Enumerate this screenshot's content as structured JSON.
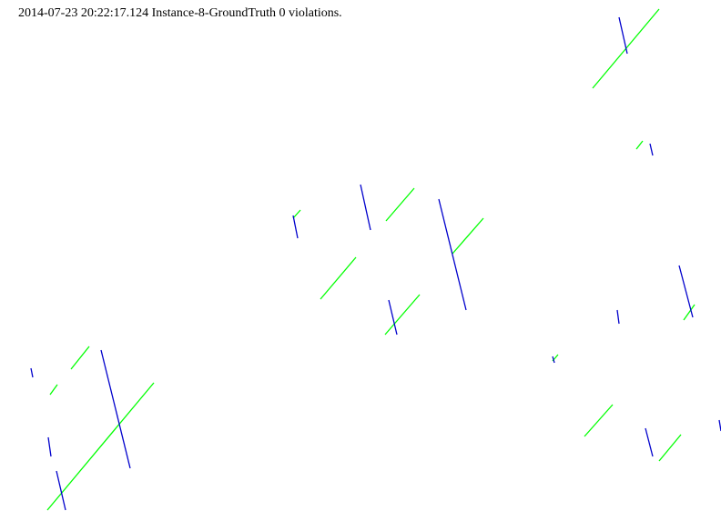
{
  "header": {
    "status_text": "2014-07-23 20:22:17.124 Instance-8-GroundTruth 0 violations."
  },
  "colors": {
    "background": "#ffffff",
    "text": "#000000",
    "green_segment": "#00ff00",
    "blue_segment": "#0000cc"
  }
}
